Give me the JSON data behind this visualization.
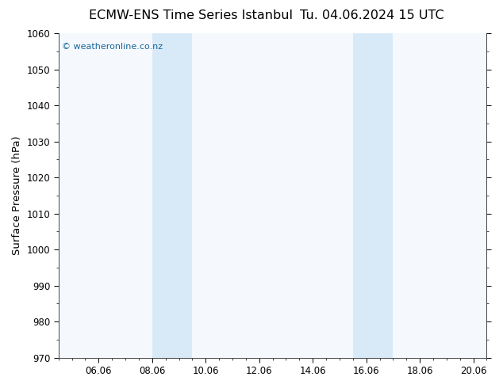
{
  "title_left": "ECMW-ENS Time Series Istanbul",
  "title_right": "Tu. 04.06.2024 15 UTC",
  "ylabel": "Surface Pressure (hPa)",
  "xlim": [
    4.5,
    20.5
  ],
  "ylim": [
    970,
    1060
  ],
  "yticks": [
    970,
    980,
    990,
    1000,
    1010,
    1020,
    1030,
    1040,
    1050,
    1060
  ],
  "xtick_positions": [
    6.0,
    8.0,
    10.0,
    12.0,
    14.0,
    16.0,
    18.0,
    20.0
  ],
  "xtick_labels": [
    "06.06",
    "08.06",
    "10.06",
    "12.06",
    "14.06",
    "16.06",
    "18.06",
    "20.06"
  ],
  "shaded_bands": [
    {
      "xmin": 8.0,
      "xmax": 9.5
    },
    {
      "xmin": 15.5,
      "xmax": 17.0
    }
  ],
  "shade_color": "#d8eaf7",
  "watermark_text": "© weatheronline.co.nz",
  "watermark_color": "#1a6699",
  "bg_color": "#ffffff",
  "plot_bg_color": "#f5f9fd",
  "axes_color": "#555555",
  "title_fontsize": 11.5,
  "tick_fontsize": 8.5,
  "ylabel_fontsize": 9.5,
  "watermark_fontsize": 8
}
